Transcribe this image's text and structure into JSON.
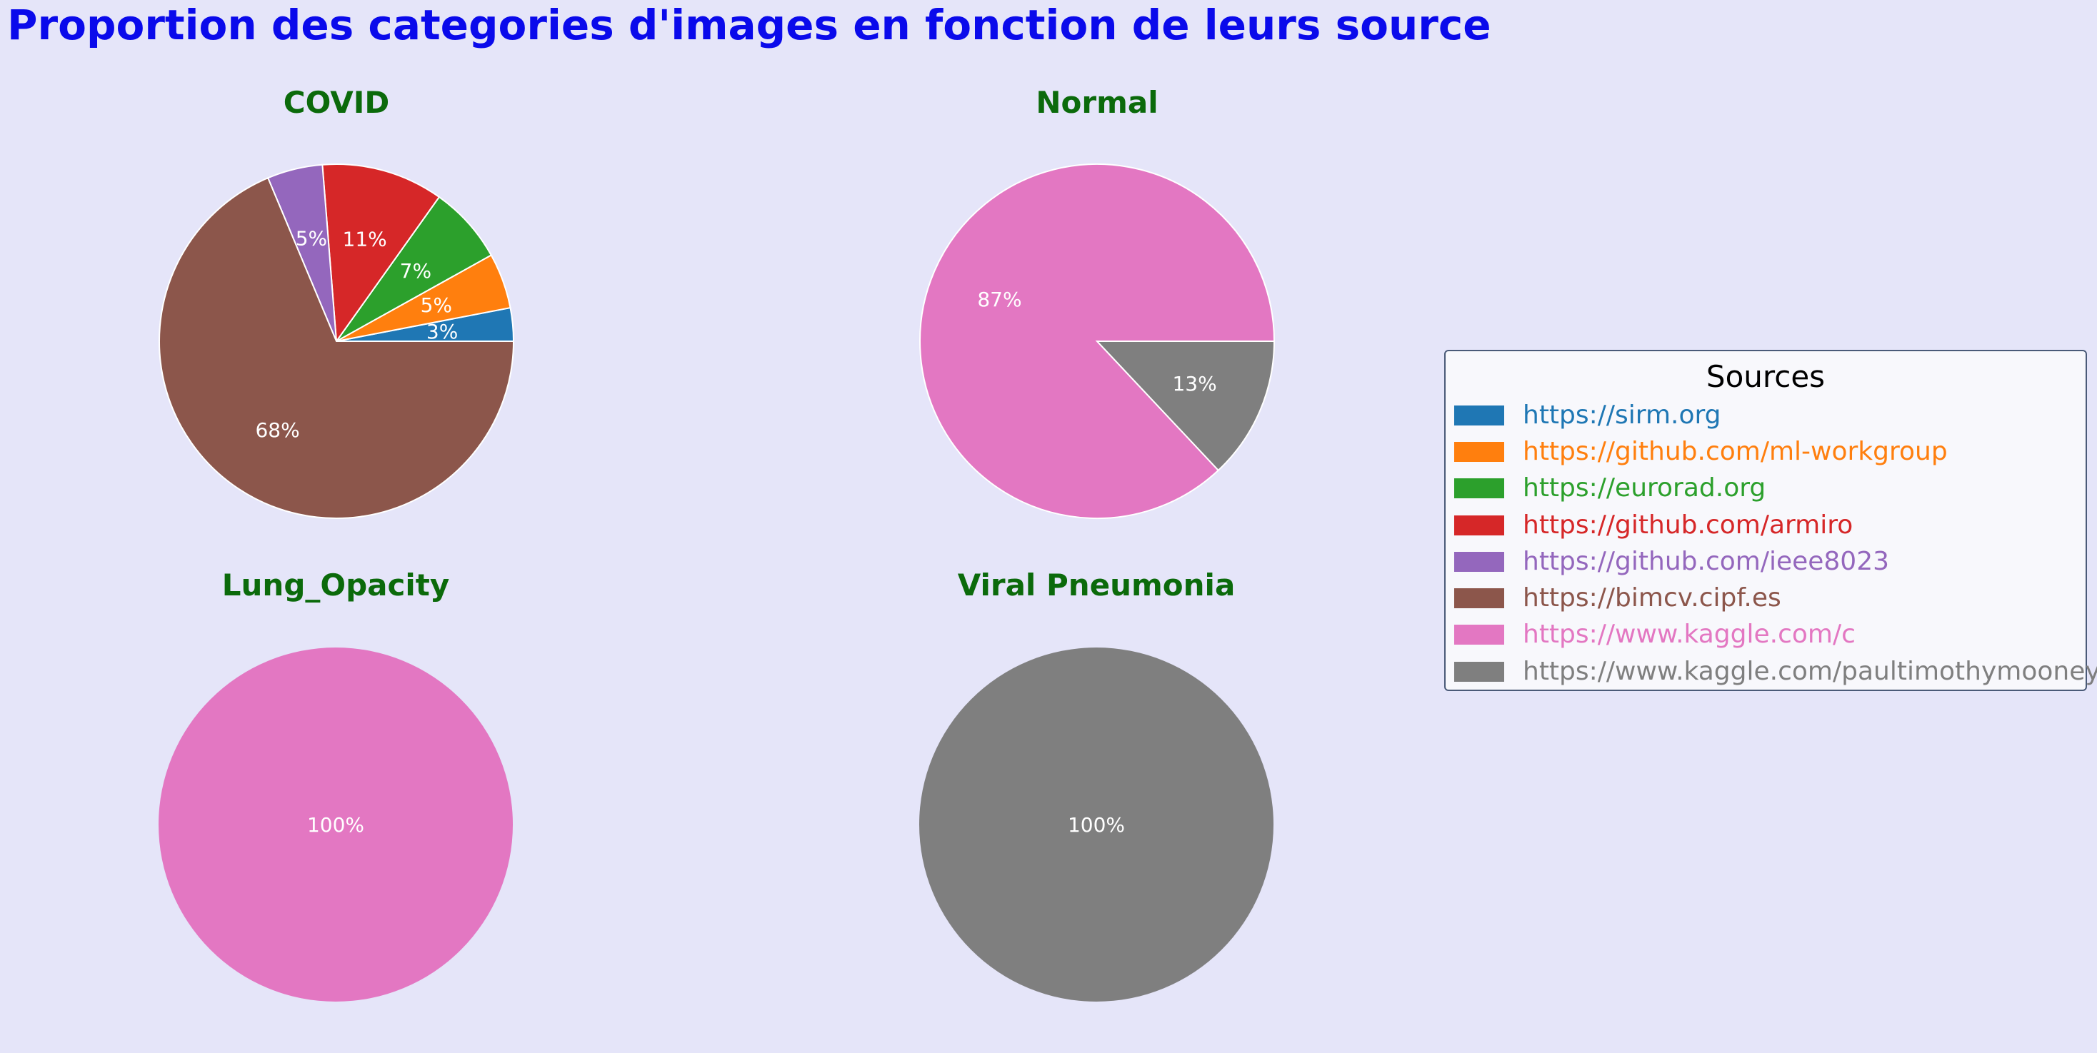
{
  "title": "Proportion des categories d'images en fonction de leurs source",
  "colors": {
    "title": "#0a0aeb",
    "subplot_title": "#0b6a0b",
    "background": "#e5e5f9"
  },
  "legend": {
    "title": "Sources",
    "placement": "right"
  },
  "chart_data": [
    {
      "type": "pie",
      "title": "COVID",
      "categories": [
        "https://sirm.org",
        "https://github.com/ml-workgroup",
        "https://eurorad.org",
        "https://github.com/armiro",
        "https://github.com/ieee8023",
        "https://bimcv.cipf.es"
      ],
      "values": [
        3,
        5,
        7,
        11,
        5,
        68
      ],
      "labels": [
        "3%",
        "5%",
        "7%",
        "11%",
        "5%",
        "68%"
      ],
      "colors": [
        "#1f77b4",
        "#ff7f0e",
        "#2ca02c",
        "#d62728",
        "#9467bd",
        "#8c564b"
      ]
    },
    {
      "type": "pie",
      "title": "Normal",
      "categories": [
        "https://www.kaggle.com/c",
        "https://www.kaggle.com/paultimothymooney"
      ],
      "values": [
        87,
        13
      ],
      "labels": [
        "87%",
        "13%"
      ],
      "colors": [
        "#e377c2",
        "#7f7f7f"
      ]
    },
    {
      "type": "pie",
      "title": "Lung_Opacity",
      "categories": [
        "https://www.kaggle.com/c"
      ],
      "values": [
        100
      ],
      "labels": [
        "100%"
      ],
      "colors": [
        "#e377c2"
      ]
    },
    {
      "type": "pie",
      "title": "Viral Pneumonia",
      "categories": [
        "https://www.kaggle.com/paultimothymooney"
      ],
      "values": [
        100
      ],
      "labels": [
        "100%"
      ],
      "colors": [
        "#7f7f7f"
      ]
    }
  ],
  "legend_items": [
    {
      "label": "https://sirm.org",
      "color": "#1f77b4"
    },
    {
      "label": "https://github.com/ml-workgroup",
      "color": "#ff7f0e"
    },
    {
      "label": "https://eurorad.org",
      "color": "#2ca02c"
    },
    {
      "label": "https://github.com/armiro",
      "color": "#d62728"
    },
    {
      "label": "https://github.com/ieee8023",
      "color": "#9467bd"
    },
    {
      "label": "https://bimcv.cipf.es",
      "color": "#8c564b"
    },
    {
      "label": "https://www.kaggle.com/c",
      "color": "#e377c2"
    },
    {
      "label": "https://www.kaggle.com/paultimothymooney",
      "color": "#7f7f7f"
    }
  ]
}
